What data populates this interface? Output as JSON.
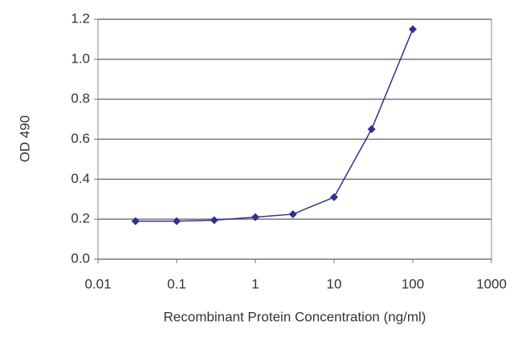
{
  "chart_data": {
    "type": "line",
    "x_label": "Recombinant Protein Concentration (ng/ml)",
    "y_label": "OD 490",
    "xscale": "log",
    "grid": true,
    "series": [
      {
        "color": "#2e3192",
        "x": [
          0.03,
          0.1,
          0.3,
          1,
          3,
          10,
          30,
          100
        ],
        "values": [
          0.19,
          0.19,
          0.195,
          0.21,
          0.225,
          0.31,
          0.65,
          1.15
        ]
      }
    ],
    "xlim": [
      0.01,
      1000
    ],
    "xticks": [
      0.01,
      0.1,
      1,
      10,
      100,
      1000
    ],
    "ylim": [
      0,
      1.2
    ],
    "yticks": [
      {
        "value": 0,
        "label": "0.0"
      },
      0.2,
      0.4,
      0.6,
      0.8,
      {
        "value": 1,
        "label": "1.0"
      },
      1.2
    ]
  }
}
